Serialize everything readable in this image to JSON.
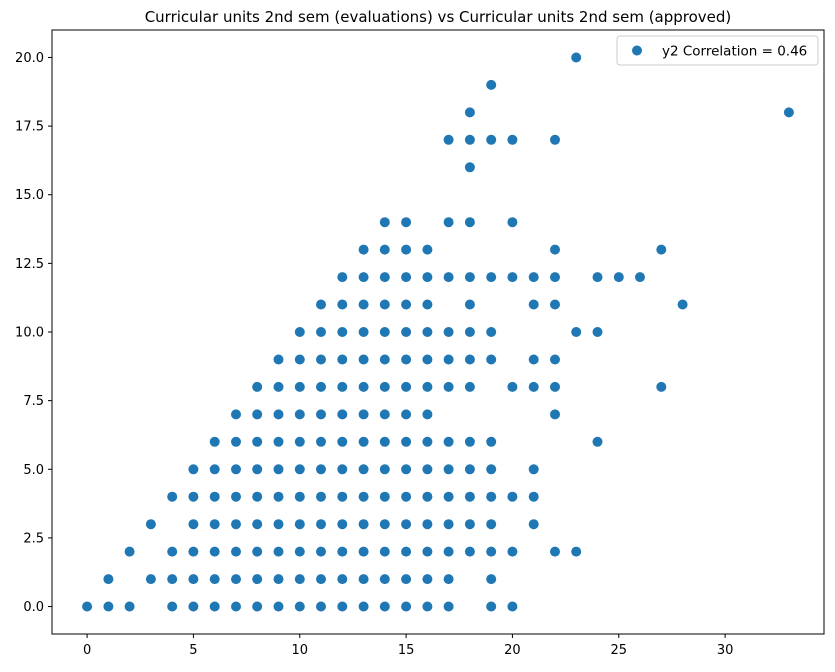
{
  "chart_data": {
    "type": "scatter",
    "title": "Curricular units 2nd sem (evaluations) vs Curricular units 2nd sem (approved)",
    "xlabel": "",
    "ylabel": "",
    "xlim": [
      -1.65,
      34.65
    ],
    "ylim": [
      -1.0,
      21.0
    ],
    "xticks": [
      0,
      5,
      10,
      15,
      20,
      25,
      30
    ],
    "yticks": [
      0.0,
      2.5,
      5.0,
      7.5,
      10.0,
      12.5,
      15.0,
      17.5,
      20.0
    ],
    "xtick_labels": [
      "0",
      "5",
      "10",
      "15",
      "20",
      "25",
      "30"
    ],
    "ytick_labels": [
      "0.0",
      "2.5",
      "5.0",
      "7.5",
      "10.0",
      "12.5",
      "15.0",
      "17.5",
      "20.0"
    ],
    "grid": false,
    "legend_position": "top-right",
    "marker_color": "#1f77b4",
    "series": [
      {
        "name": "y2 Correlation = 0.46",
        "points": [
          [
            0,
            0
          ],
          [
            1,
            0
          ],
          [
            1,
            1
          ],
          [
            2,
            0
          ],
          [
            2,
            2
          ],
          [
            3,
            1
          ],
          [
            3,
            3
          ],
          [
            4,
            0
          ],
          [
            4,
            1
          ],
          [
            4,
            2
          ],
          [
            4,
            4
          ],
          [
            5,
            0
          ],
          [
            5,
            1
          ],
          [
            5,
            2
          ],
          [
            5,
            3
          ],
          [
            5,
            4
          ],
          [
            5,
            5
          ],
          [
            6,
            0
          ],
          [
            6,
            1
          ],
          [
            6,
            2
          ],
          [
            6,
            3
          ],
          [
            6,
            4
          ],
          [
            6,
            5
          ],
          [
            6,
            6
          ],
          [
            7,
            0
          ],
          [
            7,
            1
          ],
          [
            7,
            2
          ],
          [
            7,
            3
          ],
          [
            7,
            4
          ],
          [
            7,
            5
          ],
          [
            7,
            6
          ],
          [
            7,
            7
          ],
          [
            8,
            0
          ],
          [
            8,
            1
          ],
          [
            8,
            2
          ],
          [
            8,
            3
          ],
          [
            8,
            4
          ],
          [
            8,
            5
          ],
          [
            8,
            6
          ],
          [
            8,
            7
          ],
          [
            8,
            8
          ],
          [
            9,
            0
          ],
          [
            9,
            1
          ],
          [
            9,
            2
          ],
          [
            9,
            3
          ],
          [
            9,
            4
          ],
          [
            9,
            5
          ],
          [
            9,
            6
          ],
          [
            9,
            7
          ],
          [
            9,
            8
          ],
          [
            9,
            9
          ],
          [
            10,
            0
          ],
          [
            10,
            1
          ],
          [
            10,
            2
          ],
          [
            10,
            3
          ],
          [
            10,
            4
          ],
          [
            10,
            5
          ],
          [
            10,
            6
          ],
          [
            10,
            7
          ],
          [
            10,
            8
          ],
          [
            10,
            9
          ],
          [
            10,
            10
          ],
          [
            11,
            0
          ],
          [
            11,
            1
          ],
          [
            11,
            2
          ],
          [
            11,
            3
          ],
          [
            11,
            4
          ],
          [
            11,
            5
          ],
          [
            11,
            6
          ],
          [
            11,
            7
          ],
          [
            11,
            8
          ],
          [
            11,
            9
          ],
          [
            11,
            10
          ],
          [
            11,
            11
          ],
          [
            12,
            0
          ],
          [
            12,
            1
          ],
          [
            12,
            2
          ],
          [
            12,
            3
          ],
          [
            12,
            4
          ],
          [
            12,
            5
          ],
          [
            12,
            6
          ],
          [
            12,
            7
          ],
          [
            12,
            8
          ],
          [
            12,
            9
          ],
          [
            12,
            10
          ],
          [
            12,
            11
          ],
          [
            12,
            12
          ],
          [
            13,
            0
          ],
          [
            13,
            1
          ],
          [
            13,
            2
          ],
          [
            13,
            3
          ],
          [
            13,
            4
          ],
          [
            13,
            5
          ],
          [
            13,
            6
          ],
          [
            13,
            7
          ],
          [
            13,
            8
          ],
          [
            13,
            9
          ],
          [
            13,
            10
          ],
          [
            13,
            11
          ],
          [
            13,
            12
          ],
          [
            13,
            13
          ],
          [
            14,
            0
          ],
          [
            14,
            1
          ],
          [
            14,
            2
          ],
          [
            14,
            3
          ],
          [
            14,
            4
          ],
          [
            14,
            5
          ],
          [
            14,
            6
          ],
          [
            14,
            7
          ],
          [
            14,
            8
          ],
          [
            14,
            9
          ],
          [
            14,
            10
          ],
          [
            14,
            11
          ],
          [
            14,
            12
          ],
          [
            14,
            13
          ],
          [
            14,
            14
          ],
          [
            15,
            0
          ],
          [
            15,
            1
          ],
          [
            15,
            2
          ],
          [
            15,
            3
          ],
          [
            15,
            4
          ],
          [
            15,
            5
          ],
          [
            15,
            6
          ],
          [
            15,
            7
          ],
          [
            15,
            8
          ],
          [
            15,
            9
          ],
          [
            15,
            10
          ],
          [
            15,
            11
          ],
          [
            15,
            12
          ],
          [
            15,
            13
          ],
          [
            15,
            14
          ],
          [
            16,
            0
          ],
          [
            16,
            1
          ],
          [
            16,
            2
          ],
          [
            16,
            3
          ],
          [
            16,
            4
          ],
          [
            16,
            5
          ],
          [
            16,
            6
          ],
          [
            16,
            7
          ],
          [
            16,
            8
          ],
          [
            16,
            9
          ],
          [
            16,
            10
          ],
          [
            16,
            11
          ],
          [
            16,
            12
          ],
          [
            16,
            13
          ],
          [
            17,
            0
          ],
          [
            17,
            1
          ],
          [
            17,
            2
          ],
          [
            17,
            3
          ],
          [
            17,
            4
          ],
          [
            17,
            5
          ],
          [
            17,
            6
          ],
          [
            17,
            8
          ],
          [
            17,
            9
          ],
          [
            17,
            10
          ],
          [
            17,
            12
          ],
          [
            17,
            14
          ],
          [
            17,
            17
          ],
          [
            18,
            2
          ],
          [
            18,
            3
          ],
          [
            18,
            4
          ],
          [
            18,
            5
          ],
          [
            18,
            6
          ],
          [
            18,
            8
          ],
          [
            18,
            9
          ],
          [
            18,
            10
          ],
          [
            18,
            11
          ],
          [
            18,
            12
          ],
          [
            18,
            14
          ],
          [
            18,
            16
          ],
          [
            18,
            17
          ],
          [
            18,
            18
          ],
          [
            19,
            0
          ],
          [
            19,
            1
          ],
          [
            19,
            2
          ],
          [
            19,
            3
          ],
          [
            19,
            4
          ],
          [
            19,
            5
          ],
          [
            19,
            6
          ],
          [
            19,
            9
          ],
          [
            19,
            10
          ],
          [
            19,
            12
          ],
          [
            19,
            17
          ],
          [
            19,
            19
          ],
          [
            20,
            0
          ],
          [
            20,
            2
          ],
          [
            20,
            4
          ],
          [
            20,
            8
          ],
          [
            20,
            12
          ],
          [
            20,
            14
          ],
          [
            20,
            17
          ],
          [
            21,
            3
          ],
          [
            21,
            4
          ],
          [
            21,
            5
          ],
          [
            21,
            8
          ],
          [
            21,
            9
          ],
          [
            21,
            11
          ],
          [
            21,
            12
          ],
          [
            22,
            2
          ],
          [
            22,
            7
          ],
          [
            22,
            8
          ],
          [
            22,
            9
          ],
          [
            22,
            11
          ],
          [
            22,
            12
          ],
          [
            22,
            13
          ],
          [
            22,
            17
          ],
          [
            23,
            2
          ],
          [
            23,
            10
          ],
          [
            23,
            20
          ],
          [
            24,
            6
          ],
          [
            24,
            10
          ],
          [
            24,
            12
          ],
          [
            25,
            12
          ],
          [
            26,
            12
          ],
          [
            27,
            8
          ],
          [
            27,
            13
          ],
          [
            28,
            11
          ],
          [
            33,
            18
          ]
        ]
      }
    ]
  }
}
